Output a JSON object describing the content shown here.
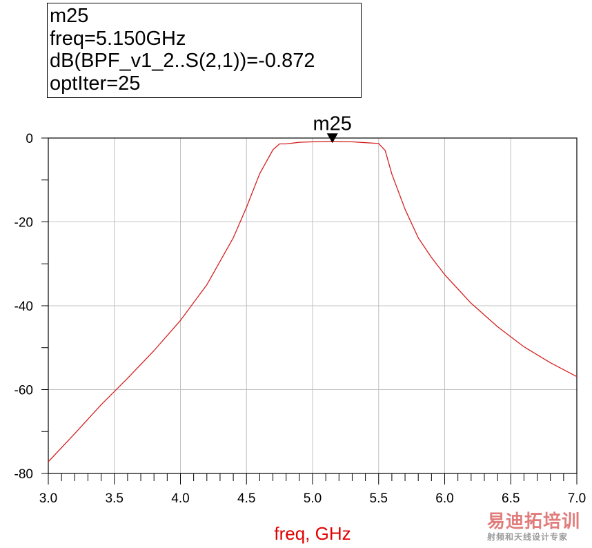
{
  "marker_box": {
    "lines": [
      "m25",
      "freq=5.150GHz",
      "dB(BPF_v1_2..S(2,1))=-0.872",
      "optIter=25"
    ]
  },
  "watermark": {
    "main": "易迪拓培训",
    "sub": "射频和天线设计专家"
  },
  "chart_data": {
    "type": "line",
    "title": "",
    "xlabel": "freq, GHz",
    "ylabel": "",
    "xlim": [
      3.0,
      7.0
    ],
    "ylim": [
      -80,
      0
    ],
    "x_ticks": [
      "3.0",
      "3.5",
      "4.0",
      "4.5",
      "5.0",
      "5.5",
      "6.0",
      "6.5",
      "7.0"
    ],
    "y_ticks": [
      "0",
      "-20",
      "-40",
      "-60",
      "-80"
    ],
    "grid": true,
    "series": [
      {
        "color": "#d42020",
        "x": [
          3.0,
          3.2,
          3.4,
          3.6,
          3.8,
          4.0,
          4.2,
          4.4,
          4.5,
          4.6,
          4.7,
          4.75,
          4.8,
          4.85,
          4.9,
          5.0,
          5.15,
          5.3,
          5.4,
          5.5,
          5.55,
          5.6,
          5.7,
          5.8,
          5.9,
          6.0,
          6.2,
          6.4,
          6.6,
          6.8,
          7.0
        ],
        "y": [
          -77.2,
          -70.5,
          -63.6,
          -57.3,
          -50.7,
          -43.5,
          -35.0,
          -23.8,
          -16.5,
          -8.5,
          -2.8,
          -1.4,
          -1.4,
          -1.2,
          -1.0,
          -0.9,
          -0.872,
          -0.9,
          -1.1,
          -1.3,
          -3.0,
          -8.6,
          -17.0,
          -23.8,
          -28.5,
          -32.6,
          -39.4,
          -45.0,
          -49.8,
          -53.6,
          -56.9
        ]
      }
    ],
    "markers": [
      {
        "label": "m25",
        "x": 5.15,
        "y": -0.872
      }
    ]
  }
}
